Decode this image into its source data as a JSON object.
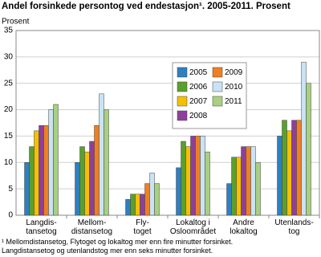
{
  "chart_data": {
    "type": "bar",
    "title": "Andel forsinkede persontog ved endestasjon¹. 2005-2011. Prosent",
    "y_label": "Prosent",
    "categories": [
      "Langdis-\ntansetog",
      "Mellom-\ndistansetog",
      "Fly-\ntoget",
      "Lokaltog i\nOsloområdet",
      "Andre\nlokaltog",
      "Utenlands-\ntog"
    ],
    "series": [
      {
        "name": "2005",
        "color": "#2f7fc1",
        "values": [
          10,
          10,
          3,
          9,
          6,
          15
        ]
      },
      {
        "name": "2006",
        "color": "#5aa02c",
        "values": [
          13,
          13,
          4,
          14,
          11,
          18
        ]
      },
      {
        "name": "2007",
        "color": "#f5c000",
        "values": [
          16,
          12,
          4,
          13,
          11,
          16
        ]
      },
      {
        "name": "2008",
        "color": "#8e3f9c",
        "values": [
          17,
          14,
          4,
          15,
          13,
          18
        ]
      },
      {
        "name": "2009",
        "color": "#f07f22",
        "values": [
          17,
          17,
          6,
          15,
          13,
          18
        ]
      },
      {
        "name": "2010",
        "color": "#c9e3f5",
        "values": [
          20,
          23,
          8,
          15,
          13,
          29
        ]
      },
      {
        "name": "2011",
        "color": "#a8d080",
        "values": [
          21,
          20,
          6,
          12,
          10,
          25
        ]
      }
    ],
    "ylim": [
      0,
      35
    ],
    "yticks": [
      0,
      5,
      10,
      15,
      20,
      25,
      30,
      35
    ],
    "grid": true,
    "legend_position": "top-right",
    "notes": [
      "¹ Mellomdistansetog, Flytoget og lokaltog mer enn fire minutter forsinket.",
      "Langdistansetog og utenlandstog mer enn seks minutter forsinket."
    ]
  }
}
